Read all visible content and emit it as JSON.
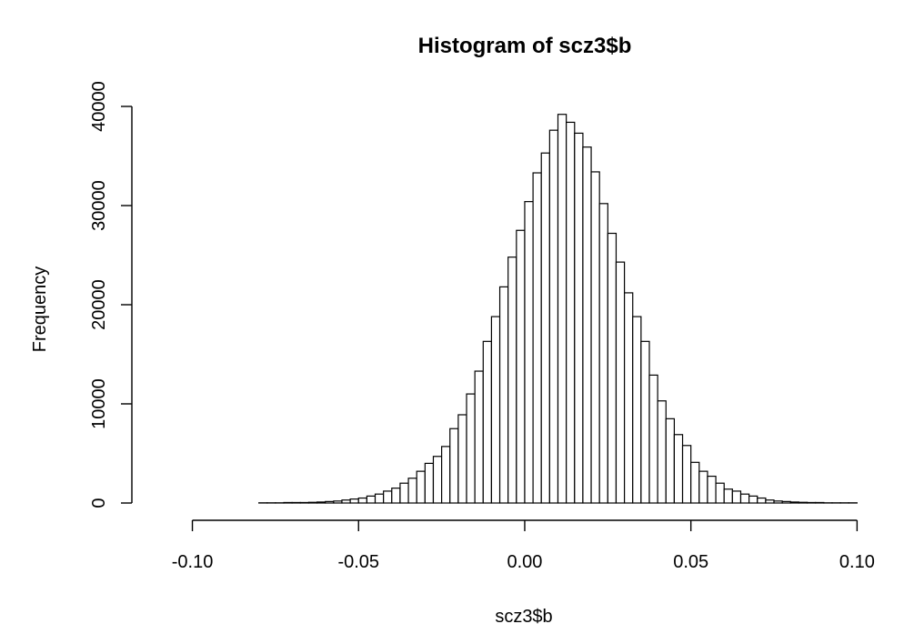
{
  "chart_data": {
    "type": "bar",
    "title": "Histogram of scz3$b",
    "xlabel": "scz3$b",
    "ylabel": "Frequency",
    "xlim": [
      -0.11,
      0.104
    ],
    "ylim": [
      0,
      40000
    ],
    "x_ticks": [
      -0.1,
      -0.05,
      0.0,
      0.05,
      0.1
    ],
    "x_tick_labels": [
      "-0.10",
      "-0.05",
      "0.00",
      "0.05",
      "0.10"
    ],
    "y_ticks": [
      0,
      10000,
      20000,
      30000,
      40000
    ],
    "y_tick_labels": [
      "0",
      "10000",
      "20000",
      "30000",
      "40000"
    ],
    "bin_width": 0.0025,
    "bin_start": -0.11,
    "values": [
      0,
      0,
      0,
      0,
      0,
      0,
      0,
      0,
      0,
      0,
      0,
      0,
      20,
      20,
      20,
      50,
      50,
      50,
      70,
      100,
      150,
      200,
      300,
      400,
      500,
      700,
      900,
      1200,
      1500,
      2000,
      2500,
      3200,
      4000,
      4700,
      5700,
      7500,
      8900,
      11000,
      13300,
      16300,
      18800,
      21800,
      24800,
      27500,
      30400,
      33300,
      35300,
      37600,
      39200,
      38400,
      37300,
      35900,
      33400,
      30200,
      27200,
      24300,
      21200,
      18800,
      16300,
      12900,
      10300,
      8500,
      6900,
      5800,
      4100,
      3200,
      2700,
      2000,
      1400,
      1200,
      900,
      700,
      500,
      300,
      200,
      150,
      100,
      70,
      50,
      50,
      20,
      20,
      20,
      20,
      0,
      0,
      0,
      0,
      0,
      0,
      0,
      0,
      0,
      0,
      0,
      0
    ]
  }
}
